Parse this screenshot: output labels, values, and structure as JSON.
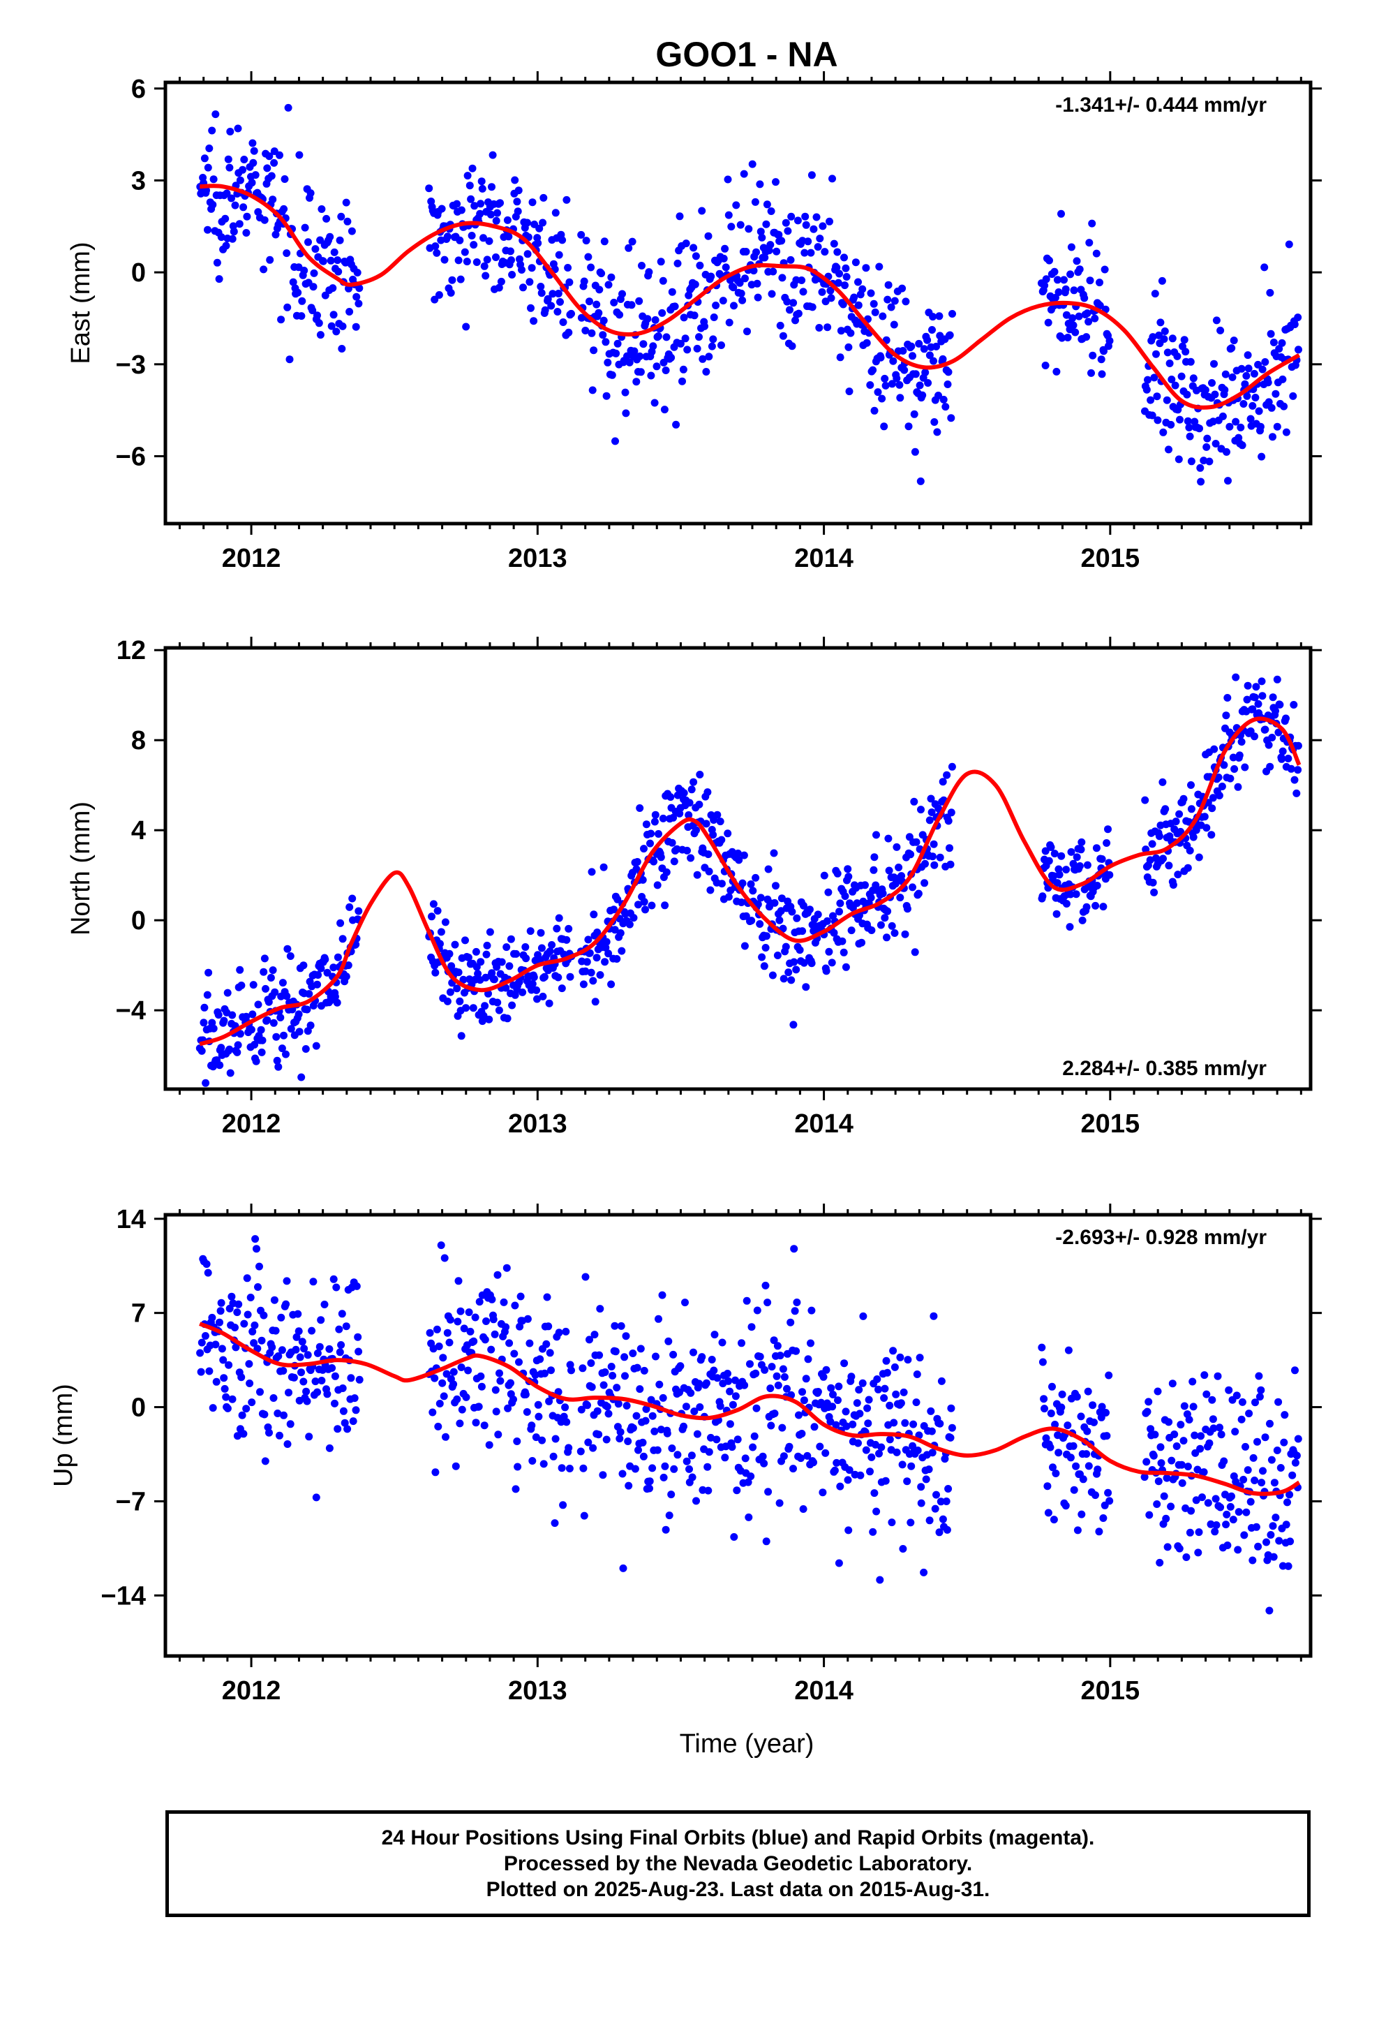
{
  "title": "GOO1 - NA",
  "colors": {
    "data": "#0000ff",
    "fit": "#ff0000",
    "frame": "#000000"
  },
  "xlabel": "Time (year)",
  "footer": {
    "line1": "24 Hour Positions Using Final Orbits (blue) and Rapid Orbits (magenta).",
    "line2": "Processed by the Nevada Geodetic Laboratory.",
    "line3": "Plotted on 2025-Aug-23. Last data on 2015-Aug-31."
  },
  "chart_data": [
    {
      "type": "scatter",
      "ylabel": "East (mm)",
      "rate": "-1.341+/- 0.444 mm/yr",
      "rate_position": "top-right",
      "xlim": [
        2011.7,
        2015.7
      ],
      "ylim": [
        -8.2,
        6.2
      ],
      "xticks": [
        2012,
        2013,
        2014,
        2015
      ],
      "xtick_labels": [
        "2012",
        "2013",
        "2014",
        "2015"
      ],
      "yticks": [
        6,
        3,
        0,
        -3,
        -6
      ],
      "ytick_labels": [
        "6",
        "3",
        "0",
        "−3",
        "−6"
      ],
      "data_segments": [
        {
          "x": [
            2011.82,
            2012.38
          ],
          "trend": "3 to -1.5",
          "spread": 1.2
        },
        {
          "x": [
            2012.62,
            2013.12
          ],
          "trend": "0.9 to 0.2",
          "spread": 1.0
        },
        {
          "x": [
            2013.15,
            2014.45
          ],
          "trend": "0.5 to -2.5",
          "spread": 1.3
        },
        {
          "x": [
            2014.76,
            2015.0
          ],
          "trend": "-1.0 to -1.5",
          "spread": 1.0
        },
        {
          "x": [
            2015.12,
            2015.66
          ],
          "trend": "-5.5 to -3.5",
          "spread": 1.2
        }
      ],
      "fit_curve": {
        "name": "model",
        "x": [
          2011.82,
          2011.9,
          2012.0,
          2012.1,
          2012.2,
          2012.3,
          2012.35,
          2012.45,
          2012.55,
          2012.65,
          2012.75,
          2012.85,
          2012.95,
          2013.05,
          2013.15,
          2013.25,
          2013.35,
          2013.45,
          2013.55,
          2013.65,
          2013.75,
          2013.85,
          2013.95,
          2014.05,
          2014.15,
          2014.25,
          2014.35,
          2014.45,
          2014.55,
          2014.65,
          2014.75,
          2014.85,
          2014.95,
          2015.05,
          2015.15,
          2015.25,
          2015.35,
          2015.45,
          2015.55,
          2015.66
        ],
        "y": [
          2.8,
          2.8,
          2.5,
          1.8,
          0.5,
          -0.2,
          -0.4,
          -0.1,
          0.7,
          1.3,
          1.6,
          1.5,
          1.1,
          0.0,
          -1.2,
          -1.9,
          -2.0,
          -1.6,
          -0.9,
          -0.2,
          0.2,
          0.2,
          0.1,
          -0.6,
          -1.7,
          -2.7,
          -3.1,
          -2.9,
          -2.2,
          -1.5,
          -1.1,
          -1.0,
          -1.2,
          -1.9,
          -3.1,
          -4.2,
          -4.4,
          -4.0,
          -3.3,
          -2.7
        ]
      }
    },
    {
      "type": "scatter",
      "ylabel": "North (mm)",
      "rate": "2.284+/- 0.385 mm/yr",
      "rate_position": "bottom-right",
      "xlim": [
        2011.7,
        2015.7
      ],
      "ylim": [
        -7.5,
        12.1
      ],
      "xticks": [
        2012,
        2013,
        2014,
        2015
      ],
      "xtick_labels": [
        "2012",
        "2013",
        "2014",
        "2015"
      ],
      "yticks": [
        12,
        8,
        4,
        0,
        -4
      ],
      "ytick_labels": [
        "12",
        "8",
        "4",
        "0",
        "−4"
      ],
      "data_segments": [
        {
          "x": [
            2011.82,
            2012.38
          ],
          "trend": "-5 to 0",
          "spread": 1.2
        },
        {
          "x": [
            2012.62,
            2013.12
          ],
          "trend": "-1 to -2.5",
          "spread": 1.1
        },
        {
          "x": [
            2013.15,
            2014.45
          ],
          "trend": "-1 to 2",
          "spread": 1.2
        },
        {
          "x": [
            2014.76,
            2015.0
          ],
          "trend": "3 to 1.5",
          "spread": 1.0
        },
        {
          "x": [
            2015.12,
            2015.66
          ],
          "trend": "3 to 9",
          "spread": 1.1
        }
      ],
      "fit_curve": {
        "name": "model",
        "x": [
          2011.82,
          2011.9,
          2012.0,
          2012.1,
          2012.2,
          2012.3,
          2012.35,
          2012.42,
          2012.5,
          2012.55,
          2012.62,
          2012.7,
          2012.8,
          2012.9,
          2013.0,
          2013.1,
          2013.2,
          2013.3,
          2013.4,
          2013.5,
          2013.55,
          2013.6,
          2013.7,
          2013.8,
          2013.9,
          2014.0,
          2014.1,
          2014.2,
          2014.3,
          2014.4,
          2014.5,
          2014.6,
          2014.7,
          2014.8,
          2014.9,
          2015.0,
          2015.1,
          2015.2,
          2015.3,
          2015.4,
          2015.5,
          2015.6,
          2015.66
        ],
        "y": [
          -5.5,
          -5.2,
          -4.5,
          -3.9,
          -3.6,
          -2.5,
          -1.0,
          0.8,
          2.1,
          1.5,
          -0.5,
          -2.5,
          -3.1,
          -2.7,
          -2.0,
          -1.7,
          -1.0,
          0.7,
          3.0,
          4.3,
          4.4,
          3.6,
          1.5,
          0.0,
          -0.9,
          -0.5,
          0.3,
          0.8,
          1.9,
          4.5,
          6.5,
          6.0,
          3.5,
          1.5,
          1.6,
          2.4,
          2.9,
          3.2,
          4.5,
          7.5,
          8.9,
          8.5,
          6.9
        ]
      }
    },
    {
      "type": "scatter",
      "ylabel": "Up (mm)",
      "rate": "-2.693+/- 0.928 mm/yr",
      "rate_position": "top-right",
      "xlim": [
        2011.7,
        2015.7
      ],
      "ylim": [
        -18.5,
        14.3
      ],
      "xticks": [
        2012,
        2013,
        2014,
        2015
      ],
      "xtick_labels": [
        "2012",
        "2013",
        "2014",
        "2015"
      ],
      "yticks": [
        14,
        7,
        0,
        -7,
        -14
      ],
      "ytick_labels": [
        "14",
        "7",
        "0",
        "−7",
        "−14"
      ],
      "data_segments": [
        {
          "x": [
            2011.82,
            2012.38
          ],
          "trend": "5 to 2",
          "spread": 3.5
        },
        {
          "x": [
            2012.62,
            2013.12
          ],
          "trend": "4 to 0",
          "spread": 3.5
        },
        {
          "x": [
            2013.15,
            2014.45
          ],
          "trend": "0 to -2",
          "spread": 3.8
        },
        {
          "x": [
            2014.76,
            2015.0
          ],
          "trend": "3 to -1",
          "spread": 3.0
        },
        {
          "x": [
            2015.12,
            2015.66
          ],
          "trend": "-5 to -6",
          "spread": 3.8
        }
      ],
      "fit_curve": {
        "name": "model",
        "x": [
          2011.82,
          2011.9,
          2012.0,
          2012.1,
          2012.2,
          2012.3,
          2012.4,
          2012.5,
          2012.55,
          2012.65,
          2012.75,
          2012.8,
          2012.9,
          2013.0,
          2013.1,
          2013.2,
          2013.3,
          2013.4,
          2013.5,
          2013.6,
          2013.7,
          2013.8,
          2013.9,
          2014.0,
          2014.1,
          2014.2,
          2014.3,
          2014.4,
          2014.5,
          2014.6,
          2014.7,
          2014.8,
          2014.9,
          2015.0,
          2015.1,
          2015.2,
          2015.3,
          2015.4,
          2015.5,
          2015.6,
          2015.66
        ],
        "y": [
          6.2,
          5.5,
          4.2,
          3.2,
          3.2,
          3.5,
          3.2,
          2.3,
          2.0,
          2.7,
          3.6,
          3.8,
          3.0,
          1.5,
          0.6,
          0.7,
          0.6,
          0.1,
          -0.6,
          -0.8,
          -0.2,
          0.8,
          0.4,
          -1.3,
          -2.1,
          -2.0,
          -2.2,
          -3.1,
          -3.6,
          -3.2,
          -2.2,
          -1.6,
          -2.4,
          -4.0,
          -4.8,
          -4.9,
          -5.1,
          -5.7,
          -6.4,
          -6.3,
          -5.6
        ]
      }
    }
  ]
}
